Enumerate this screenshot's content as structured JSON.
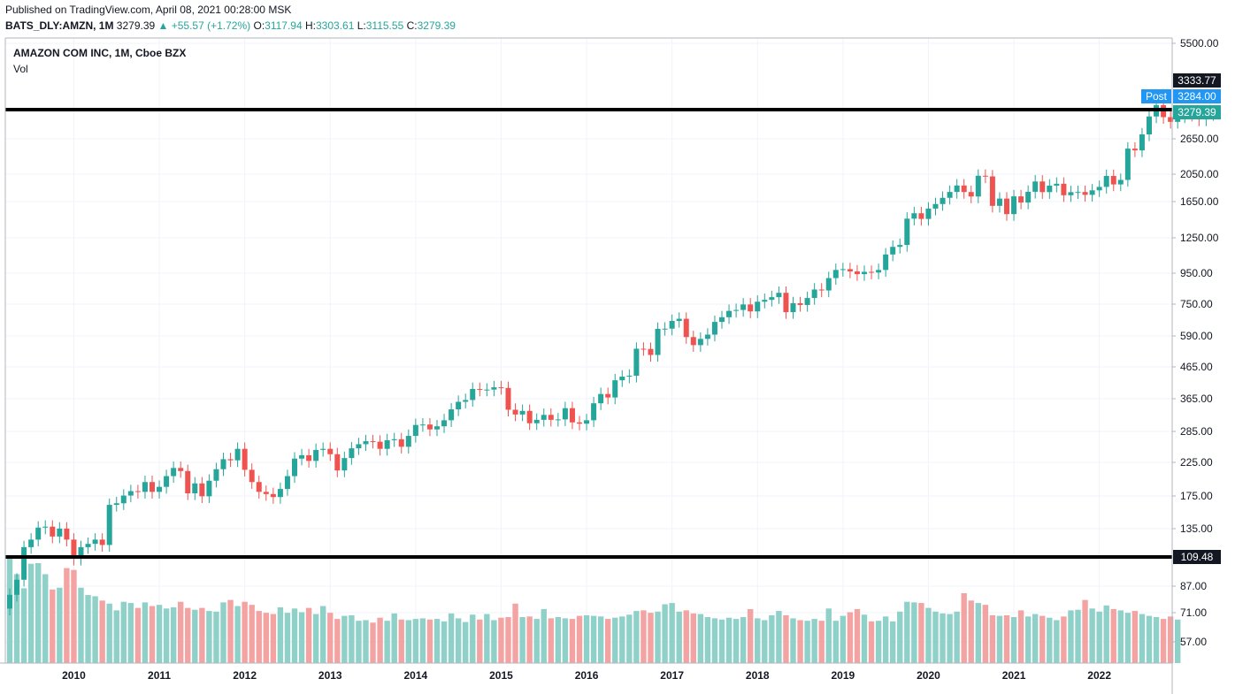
{
  "header": {
    "published": "Published on TradingView.com, April 08, 2021 00:28:00 MSK",
    "symbol": "BATS_DLY:AMZN, 1M",
    "last": "3279.39",
    "change": "▲ +55.57 (+1.72%)",
    "o_label": "O:",
    "o_val": "3117.94",
    "h_label": "H:",
    "h_val": "3303.61",
    "l_label": "L:",
    "l_val": "3115.55",
    "c_label": "C:",
    "c_val": "3279.39"
  },
  "legend": {
    "title": "AMAZON COM INC, 1M, Cboe BZX",
    "volume": "Vol"
  },
  "colors": {
    "up": "#26a69a",
    "down": "#ef5350",
    "vol_up": "#8fd0c8",
    "vol_down": "#f4a3a3",
    "post": "#2196f3"
  },
  "chart_data": {
    "type": "candlestick",
    "price_axis_ticks": [
      "5500.00",
      "2650.00",
      "2050.00",
      "1650.00",
      "1250.00",
      "950.00",
      "750.00",
      "590.00",
      "465.00",
      "365.00",
      "285.00",
      "225.00",
      "175.00",
      "135.00",
      "87.00",
      "71.00",
      "57.00"
    ],
    "x_ticks": [
      "2010",
      "2011",
      "2012",
      "2013",
      "2014",
      "2015",
      "2016",
      "2017",
      "2018",
      "2019",
      "2020",
      "2021",
      "2022"
    ],
    "price_labels": {
      "line_high": "3333.77",
      "post_tag": "Post",
      "post_value": "3284.00",
      "last": "3279.39",
      "line_low": "109.48"
    },
    "horizontal_lines": [
      3333.77,
      109.48
    ],
    "monthly_close": [
      82,
      92,
      118,
      125,
      137,
      138,
      128,
      136,
      125,
      108,
      118,
      121,
      125,
      120,
      163,
      165,
      175,
      181,
      180,
      194,
      180,
      187,
      203,
      216,
      211,
      178,
      192,
      174,
      196,
      214,
      231,
      229,
      250,
      213,
      194,
      180,
      177,
      173,
      184,
      203,
      232,
      238,
      228,
      248,
      250,
      240,
      212,
      233,
      251,
      259,
      265,
      264,
      250,
      267,
      269,
      254,
      276,
      300,
      301,
      290,
      297,
      311,
      338,
      358,
      363,
      395,
      393,
      393,
      400,
      398,
      337,
      325,
      334,
      304,
      312,
      324,
      312,
      313,
      341,
      306,
      303,
      311,
      354,
      380,
      370,
      422,
      434,
      437,
      537,
      536,
      512,
      625,
      626,
      664,
      675,
      587,
      552,
      579,
      598,
      659,
      683,
      717,
      722,
      753,
      714,
      769,
      780,
      796,
      823,
      710,
      760,
      750,
      791,
      844,
      838,
      921,
      980,
      986,
      969,
      949,
      966,
      961,
      980,
      1103,
      1169,
      1186,
      1450,
      1511,
      1447,
      1566,
      1621,
      1700,
      1778,
      1868,
      1777,
      1717,
      2012,
      2002,
      1599,
      1690,
      1501,
      1719,
      1640,
      1780,
      1926,
      1776,
      1866,
      1893,
      1734,
      1775,
      1777,
      1739,
      1800,
      1848,
      2009,
      1883,
      1949,
      2475,
      2442,
      2759,
      3164,
      3450,
      3148,
      3036,
      3168,
      3256,
      3206,
      3093,
      3223,
      3279
    ],
    "monthly_volume": [
      176,
      145,
      122,
      162,
      163,
      145,
      120,
      123,
      155,
      152,
      123,
      111,
      109,
      102,
      97,
      86,
      100,
      98,
      90,
      99,
      93,
      95,
      89,
      91,
      100,
      90,
      87,
      90,
      85,
      84,
      99,
      103,
      93,
      100,
      95,
      85,
      82,
      80,
      91,
      82,
      89,
      83,
      90,
      80,
      93,
      82,
      72,
      77,
      78,
      69,
      70,
      66,
      74,
      69,
      81,
      71,
      70,
      72,
      73,
      71,
      72,
      68,
      81,
      73,
      67,
      79,
      71,
      80,
      70,
      74,
      75,
      97,
      75,
      76,
      72,
      88,
      73,
      75,
      73,
      72,
      77,
      78,
      77,
      76,
      72,
      74,
      76,
      79,
      85,
      86,
      82,
      84,
      96,
      98,
      84,
      86,
      81,
      80,
      75,
      73,
      71,
      74,
      72,
      75,
      88,
      73,
      70,
      78,
      85,
      78,
      73,
      70,
      69,
      72,
      69,
      89,
      69,
      77,
      83,
      88,
      79,
      68,
      69,
      76,
      68,
      84,
      100,
      99,
      98,
      90,
      84,
      81,
      80,
      84,
      114,
      102,
      98,
      95,
      78,
      77,
      78,
      75,
      86,
      76,
      80,
      77,
      74,
      70,
      76,
      86,
      87,
      103,
      89,
      84,
      94,
      88,
      86,
      82,
      85,
      80,
      77,
      75,
      72,
      76,
      71
    ],
    "volume_axis_note": "Vol"
  }
}
